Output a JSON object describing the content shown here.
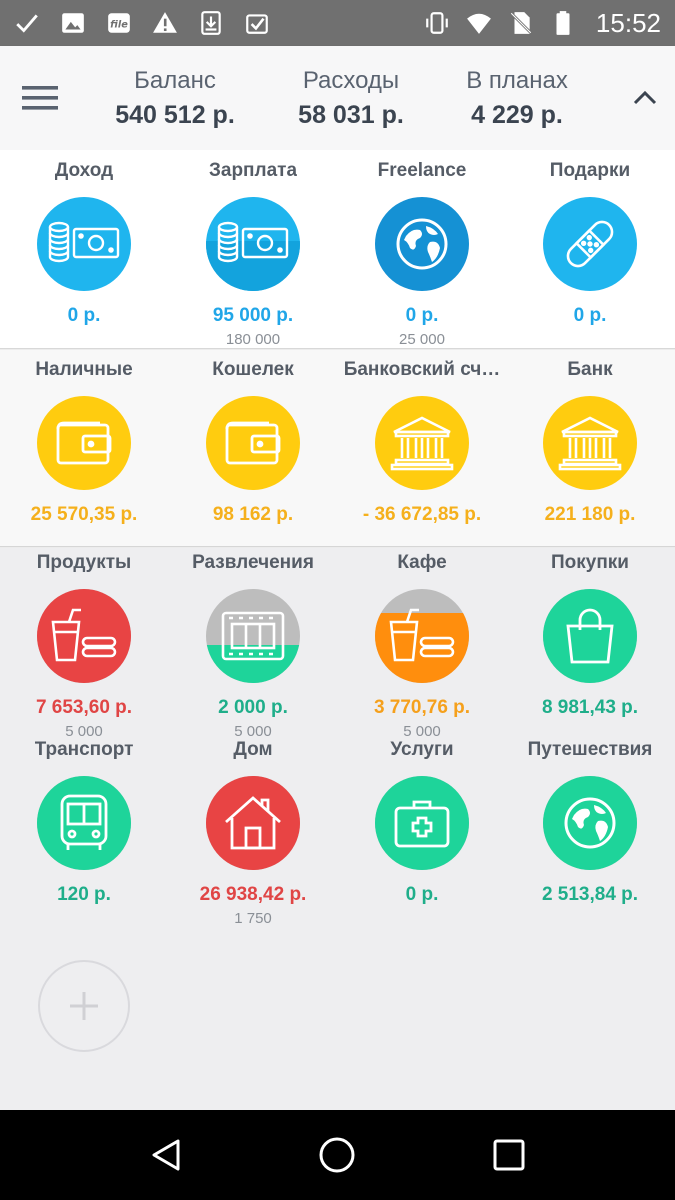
{
  "status_bar": {
    "time": "15:52",
    "left_icons": [
      "check-icon",
      "image-icon",
      "file-icon",
      "warning-icon",
      "download-icon",
      "clipboard-check-icon"
    ],
    "right_icons": [
      "vibrate-icon",
      "wifi-icon",
      "no-sim-icon",
      "battery-icon"
    ]
  },
  "summary": {
    "balance_label": "Баланс",
    "balance_value": "540 512 р.",
    "expenses_label": "Расходы",
    "expenses_value": "58 031 р.",
    "planned_label": "В планах",
    "planned_value": "4 229 р."
  },
  "income": [
    {
      "name": "Доход",
      "amount": "0 р.",
      "plan": "",
      "icon": "money-icon",
      "color": "#1fb5ee",
      "fill": 0
    },
    {
      "name": "Зарплата",
      "amount": "95 000 р.",
      "plan": "180 000",
      "icon": "money-icon",
      "color": "#1fb5ee",
      "fill": 0.53
    },
    {
      "name": "Freelance",
      "amount": "0 р.",
      "plan": "25 000",
      "icon": "globe-icon",
      "color": "#1591d4",
      "fill": 0
    },
    {
      "name": "Подарки",
      "amount": "0 р.",
      "plan": "",
      "icon": "bandage-icon",
      "color": "#1fb5ee",
      "fill": 0
    }
  ],
  "accounts": [
    {
      "name": "Наличные",
      "amount": "25 570,35 р.",
      "icon": "wallet-icon",
      "color": "#ffcc0f"
    },
    {
      "name": "Кошелек",
      "amount": "98 162 р.",
      "icon": "wallet-icon",
      "color": "#ffcc0f"
    },
    {
      "name": "Банковский сч…",
      "amount": "- 36 672,85 р.",
      "icon": "bank-icon",
      "color": "#ffcc0f"
    },
    {
      "name": "Банк",
      "amount": "221 180 р.",
      "icon": "bank-icon",
      "color": "#ffcc0f"
    }
  ],
  "expenses": [
    {
      "name": "Продукты",
      "amount": "7 653,60 р.",
      "plan": "5 000",
      "icon": "food-icon",
      "color": "#e84444",
      "amount_color": "red",
      "fill": 1
    },
    {
      "name": "Развлечения",
      "amount": "2 000 р.",
      "plan": "5 000",
      "icon": "film-icon",
      "color": "#1ed49a",
      "amount_color": "green",
      "fill": 0.4
    },
    {
      "name": "Кафе",
      "amount": "3 770,76 р.",
      "plan": "5 000",
      "icon": "food-icon",
      "color": "#ff8e0d",
      "amount_color": "orange",
      "fill": 0.75
    },
    {
      "name": "Покупки",
      "amount": "8 981,43 р.",
      "plan": "",
      "icon": "shopping-bag-icon",
      "color": "#1ed49a",
      "amount_color": "green",
      "fill": 1
    },
    {
      "name": "Транспорт",
      "amount": "120 р.",
      "plan": "",
      "icon": "bus-icon",
      "color": "#1ed49a",
      "amount_color": "green",
      "fill": 1
    },
    {
      "name": "Дом",
      "amount": "26 938,42 р.",
      "plan": "1 750",
      "icon": "house-icon",
      "color": "#e84444",
      "amount_color": "red",
      "fill": 1
    },
    {
      "name": "Услуги",
      "amount": "0 р.",
      "plan": "",
      "icon": "medkit-icon",
      "color": "#1ed49a",
      "amount_color": "green",
      "fill": 1
    },
    {
      "name": "Путешествия",
      "amount": "2 513,84 р.",
      "plan": "",
      "icon": "globe-icon",
      "color": "#1ed49a",
      "amount_color": "green",
      "fill": 1
    }
  ],
  "add_button": {
    "icon": "plus-icon"
  },
  "nav": {
    "icons": [
      "back-icon",
      "home-icon",
      "recents-icon"
    ]
  }
}
